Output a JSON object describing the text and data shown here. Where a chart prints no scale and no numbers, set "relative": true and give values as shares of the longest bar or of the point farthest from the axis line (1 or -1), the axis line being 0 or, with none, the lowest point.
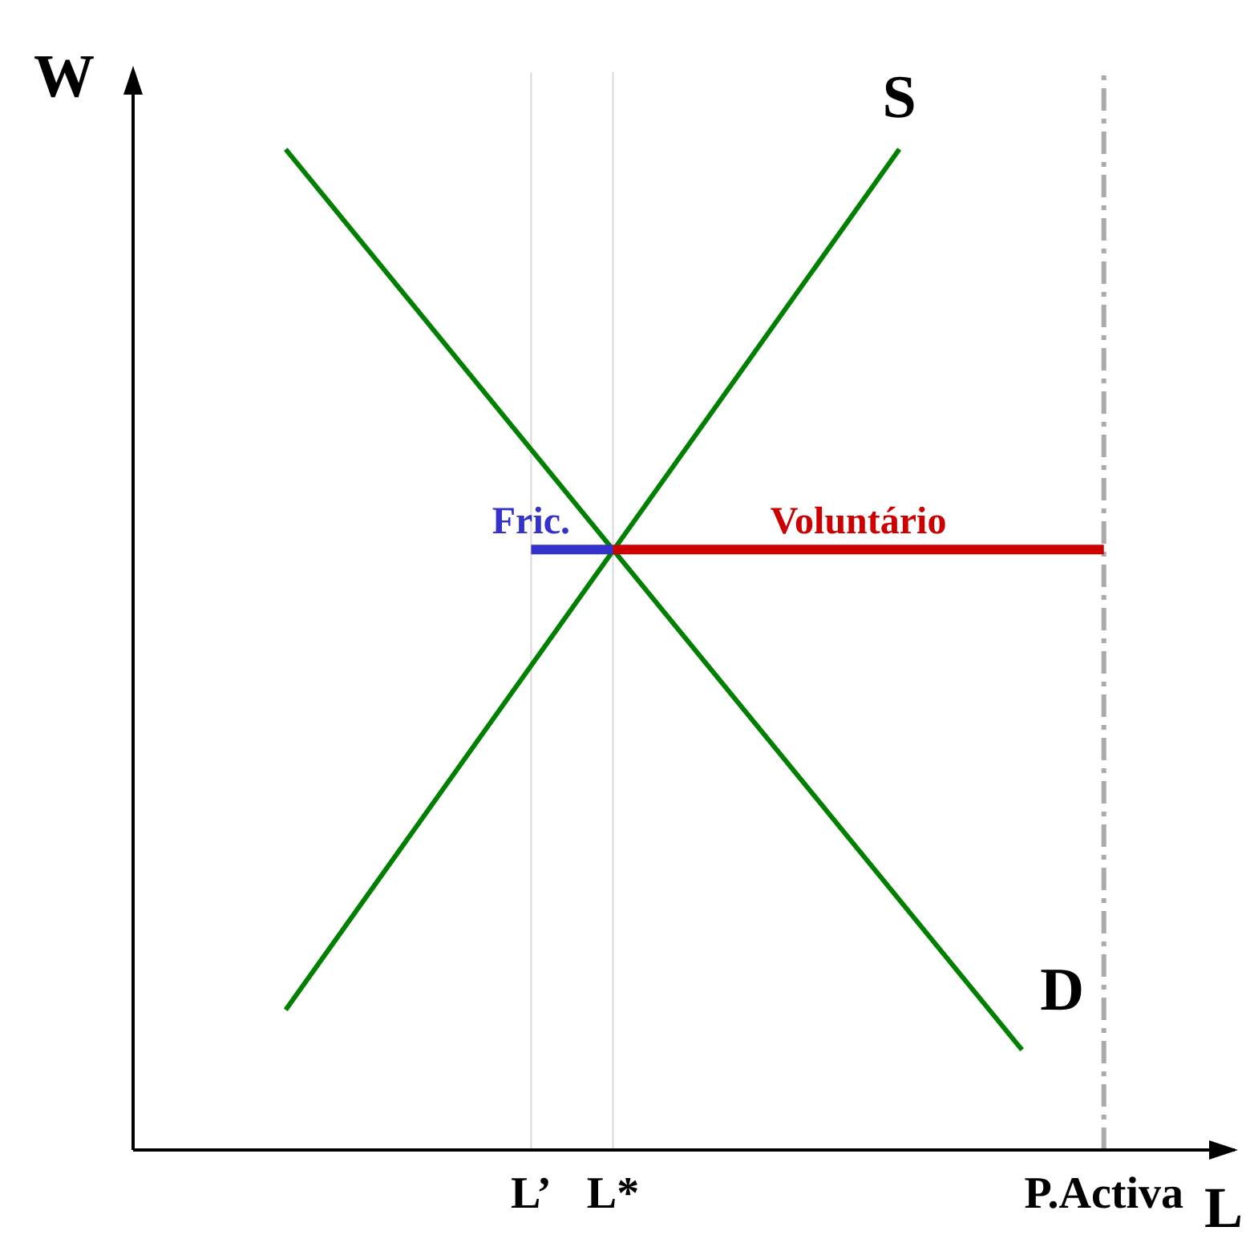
{
  "chart_data": {
    "type": "line",
    "relative": true,
    "xlabel": "L",
    "ylabel": "W",
    "categories": [
      null,
      null,
      null,
      null,
      null,
      null,
      "L’",
      null,
      "L*",
      null,
      null,
      null,
      null,
      null,
      null,
      null,
      null,
      null,
      null,
      null,
      "P.Activa"
    ],
    "series": [
      {
        "name": "S",
        "color": "#008000",
        "values": [
          0.14,
          null,
          null,
          null,
          null,
          null,
          null,
          null,
          null,
          null,
          null,
          null,
          null,
          null,
          null,
          1.0,
          null,
          null,
          null,
          null,
          null
        ]
      },
      {
        "name": "D",
        "color": "#008000",
        "values": [
          1.0,
          null,
          null,
          null,
          null,
          null,
          null,
          null,
          null,
          null,
          null,
          null,
          null,
          null,
          null,
          null,
          null,
          null,
          0.1,
          null,
          null
        ]
      },
      {
        "name": "Fric.",
        "color": "#3333cc",
        "values": [
          null,
          null,
          null,
          null,
          null,
          null,
          0.6,
          null,
          0.6,
          null,
          null,
          null,
          null,
          null,
          null,
          null,
          null,
          null,
          null,
          null,
          null
        ]
      },
      {
        "name": "Voluntário",
        "color": "#cc0000",
        "values": [
          null,
          null,
          null,
          null,
          null,
          null,
          null,
          null,
          0.6,
          null,
          null,
          null,
          null,
          null,
          0.6,
          null,
          null,
          null,
          null,
          null,
          0.6
        ]
      }
    ],
    "ref_lines": [
      {
        "axis": "x",
        "value": "L’",
        "color": "#d9d9d9",
        "line_style": "solid"
      },
      {
        "axis": "x",
        "value": "L*",
        "color": "#d9d9d9",
        "line_style": "solid"
      },
      {
        "axis": "x",
        "value": "P.Activa",
        "color": "#aaaaaa",
        "line_style": "dashed"
      }
    ],
    "grid": false,
    "legend": false,
    "marker": "none",
    "line_style": "solid"
  }
}
